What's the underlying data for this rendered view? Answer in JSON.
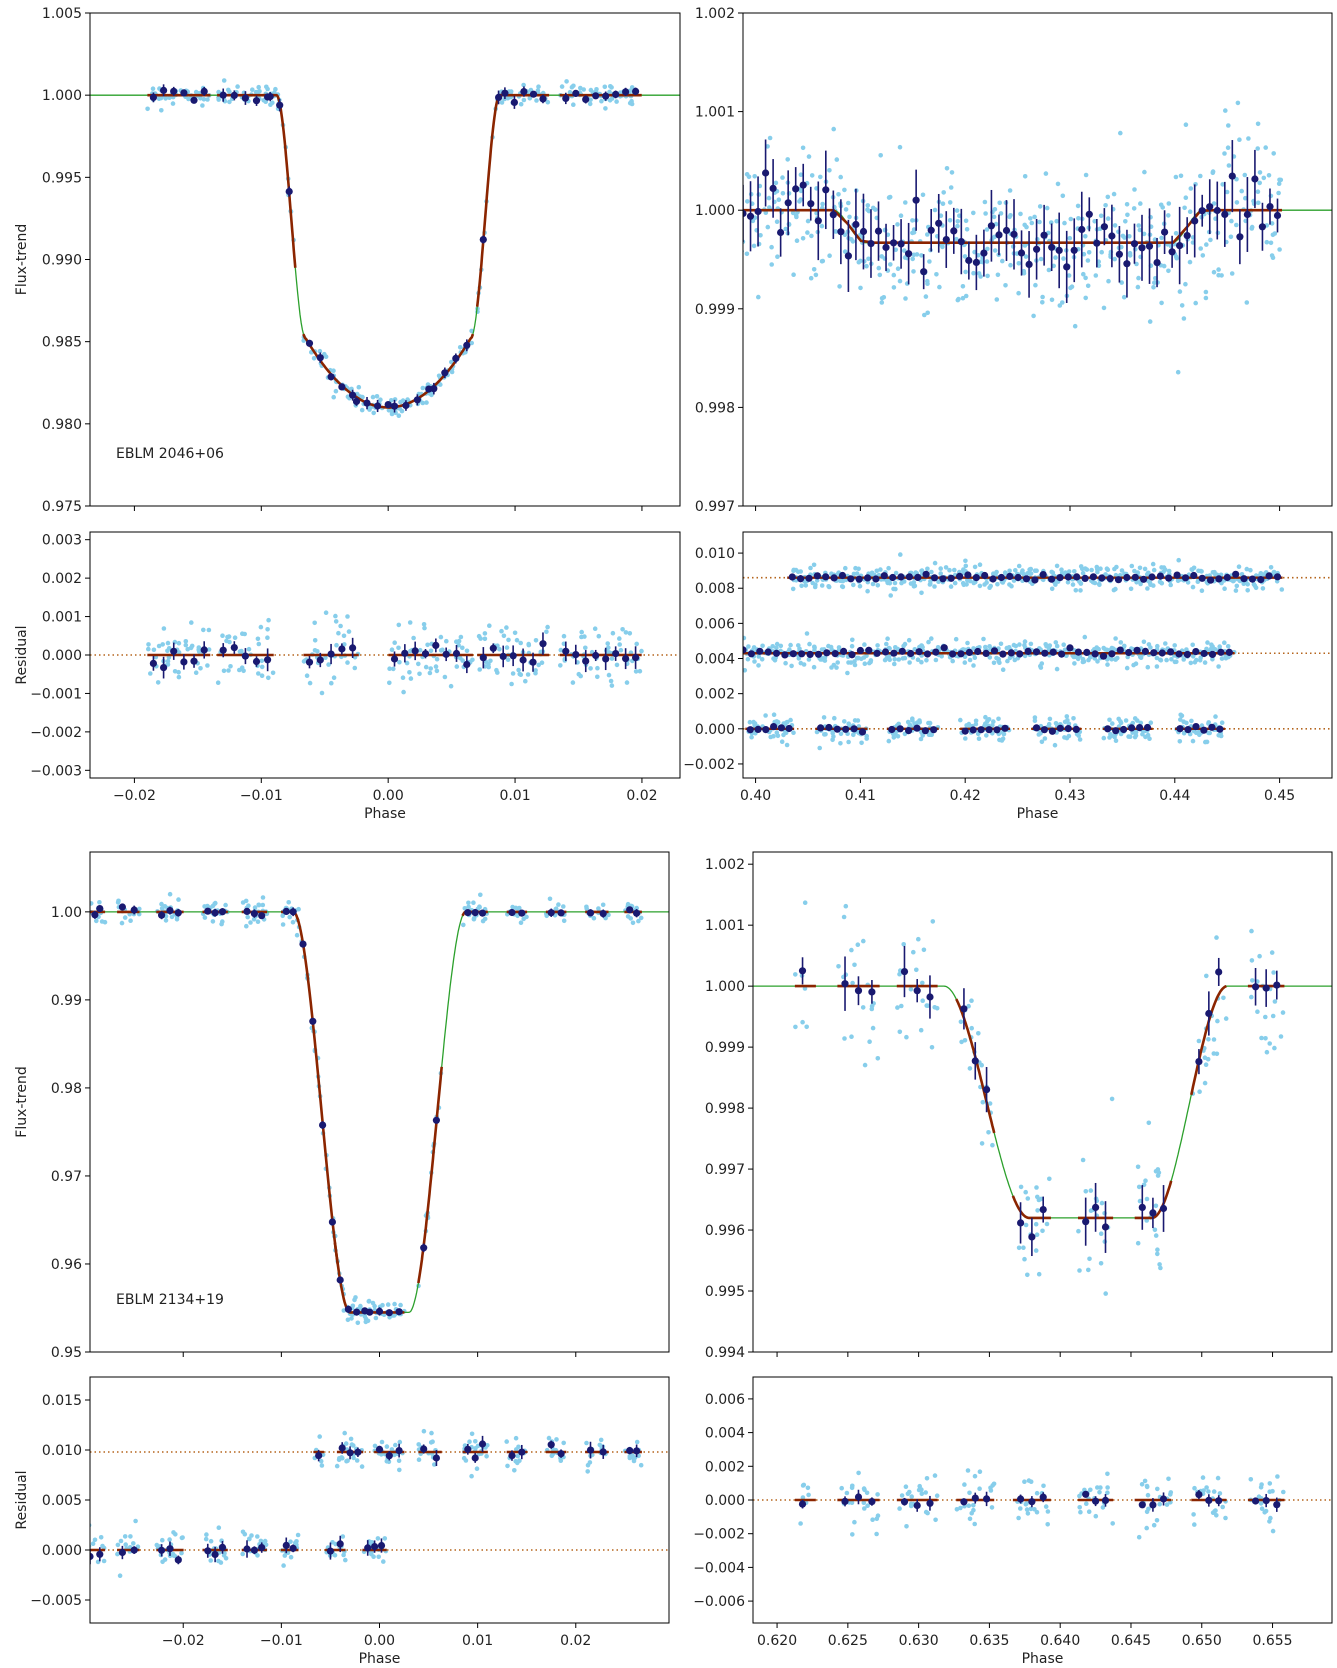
{
  "figure": {
    "phase_label": "Phase",
    "flux_label": "Flux-trend",
    "residual_label": "Residual"
  },
  "colors": {
    "raw_points": "#87ceeb",
    "binned_points": "#191970",
    "model_line": "#2ca02c",
    "binned_model": "#8b2500",
    "zero_line": "#b5651d"
  },
  "chart_data": [
    {
      "type": "scatter",
      "panel": "top-left-flux",
      "annotation": "EBLM 2046+06",
      "xlabel": "",
      "ylabel": "Flux-trend",
      "xlim": [
        -0.0235,
        0.023
      ],
      "ylim": [
        0.975,
        1.005
      ],
      "yticks": [
        "0.975",
        "0.980",
        "0.985",
        "0.990",
        "0.995",
        "1.000",
        "1.005"
      ],
      "model": {
        "kind": "primary",
        "center": 0.0,
        "t1": 0.0088,
        "t2": 0.0065,
        "depth": 0.0148,
        "curv": 0.0042
      },
      "binned": {
        "segments": [
          [
            -0.0185,
            -0.0145
          ],
          [
            -0.013,
            -0.0095
          ],
          [
            -0.0093,
            -0.0078
          ],
          [
            -0.0062,
            -0.0028
          ],
          [
            -0.0025,
            0.0
          ],
          [
            0.0005,
            0.0032
          ],
          [
            0.0036,
            0.0062
          ],
          [
            0.0075,
            0.0087
          ],
          [
            0.0092,
            0.0122
          ],
          [
            0.014,
            0.0195
          ]
        ],
        "spacing": 0.0008,
        "noise": 0.00017
      },
      "raw_noise": 0.0003
    },
    {
      "type": "scatter",
      "panel": "top-right-flux",
      "xlabel": "",
      "ylabel": "",
      "xlim": [
        0.3988,
        0.455
      ],
      "ylim": [
        0.997,
        1.002
      ],
      "yticks": [
        "0.997",
        "0.998",
        "0.999",
        "1.000",
        "1.001",
        "1.002"
      ],
      "model": {
        "kind": "secondary",
        "a": 0.4074,
        "b": 0.4105,
        "c": 0.4397,
        "d": 0.4427,
        "depth": 0.00033
      },
      "binned": {
        "segments": [
          [
            0.3988,
            0.4498
          ]
        ],
        "spacing": 0.00072,
        "noise": 0.00016
      },
      "raw_noise": 0.00035
    },
    {
      "type": "scatter",
      "panel": "top-left-residual",
      "xlabel": "Phase",
      "ylabel": "Residual",
      "xlim": [
        -0.0235,
        0.023
      ],
      "ylim": [
        -0.0032,
        0.0032
      ],
      "yticks": [
        "−0.003",
        "−0.002",
        "−0.001",
        "0.000",
        "0.001",
        "0.002",
        "0.003"
      ],
      "xticks": [
        "−0.02",
        "−0.01",
        "0.00",
        "0.01",
        "0.02"
      ],
      "offsets": [
        0
      ],
      "binned": {
        "segments": [
          [
            -0.0185,
            -0.0145
          ],
          [
            -0.013,
            -0.0095
          ],
          [
            -0.0062,
            -0.0028
          ],
          [
            0.0005,
            0.0062
          ],
          [
            0.0075,
            0.0122
          ],
          [
            0.014,
            0.0195
          ]
        ],
        "spacing": 0.0008,
        "noise": 0.00012
      },
      "raw_noise": 0.00045
    },
    {
      "type": "scatter",
      "panel": "top-right-residual",
      "xlabel": "Phase",
      "ylabel": "",
      "xlim": [
        0.3988,
        0.455
      ],
      "ylim": [
        -0.0028,
        0.0112
      ],
      "yticks": [
        "−0.002",
        "0.000",
        "0.002",
        "0.004",
        "0.006",
        "0.008",
        "0.010"
      ],
      "xticks": [
        "0.40",
        "0.41",
        "0.42",
        "0.43",
        "0.44",
        "0.45"
      ],
      "offsets": [
        0,
        0.0043,
        0.0086
      ],
      "binned": {
        "segments_by_offset": [
          [
            [
              0.3995,
              0.4032
            ],
            [
              0.4062,
              0.4102
            ],
            [
              0.413,
              0.417
            ],
            [
              0.42,
              0.4238
            ],
            [
              0.4268,
              0.4306
            ],
            [
              0.4336,
              0.4374
            ],
            [
              0.4405,
              0.4443
            ]
          ],
          [
            [
              0.3988,
              0.4452
            ]
          ],
          [
            [
              0.4035,
              0.4498
            ]
          ]
        ],
        "spacing": 0.0008,
        "noise": 8e-05
      },
      "raw_noise": 0.00035
    },
    {
      "type": "scatter",
      "panel": "bottom-left-flux",
      "annotation": "EBLM 2134+19",
      "xlabel": "",
      "ylabel": "Flux-trend",
      "xlim": [
        -0.0295,
        0.0295
      ],
      "ylim": [
        0.95,
        1.0068
      ],
      "yticks": [
        "0.95",
        "0.96",
        "0.97",
        "0.98",
        "0.99",
        "1.00"
      ],
      "model": {
        "kind": "primary",
        "center": 0.0,
        "t1": 0.0088,
        "t2": 0.003,
        "depth": 0.0455,
        "curv": 0.0
      },
      "binned": {
        "segments": [
          [
            -0.029,
            -0.0285
          ],
          [
            -0.0262,
            -0.025
          ],
          [
            -0.0222,
            -0.0205
          ],
          [
            -0.0175,
            -0.016
          ],
          [
            -0.0135,
            -0.012
          ],
          [
            -0.0095,
            -0.0088
          ],
          [
            -0.0078,
            -0.0048
          ],
          [
            -0.004,
            -0.0015
          ],
          [
            -0.001,
            0.002
          ],
          [
            0.0045,
            0.0058
          ],
          [
            0.009,
            0.0105
          ],
          [
            0.0135,
            0.0145
          ],
          [
            0.0175,
            0.0185
          ],
          [
            0.0215,
            0.0228
          ],
          [
            0.0255,
            0.0262
          ]
        ],
        "spacing": 0.0009,
        "noise": 0.0002
      },
      "raw_noise": 0.0007
    },
    {
      "type": "scatter",
      "panel": "bottom-right-flux",
      "xlabel": "",
      "ylabel": "",
      "xlim": [
        0.6183,
        0.6592
      ],
      "ylim": [
        0.994,
        1.0022
      ],
      "yticks": [
        "0.994",
        "0.995",
        "0.996",
        "0.997",
        "0.998",
        "0.999",
        "1.000",
        "1.001",
        "1.002"
      ],
      "model": {
        "kind": "secondary",
        "a": 0.6318,
        "b": 0.6378,
        "c": 0.6465,
        "d": 0.6518,
        "depth": 0.0038
      },
      "binned": {
        "segments": [
          [
            0.6218,
            0.6222
          ],
          [
            0.6248,
            0.6267
          ],
          [
            0.629,
            0.6308
          ],
          [
            0.6332,
            0.6348
          ],
          [
            0.6372,
            0.6388
          ],
          [
            0.6418,
            0.6432
          ],
          [
            0.6458,
            0.6473
          ],
          [
            0.6498,
            0.6512
          ],
          [
            0.6538,
            0.6553
          ]
        ],
        "spacing": 0.0009,
        "noise": 0.00018
      },
      "raw_noise": 0.0006
    },
    {
      "type": "scatter",
      "panel": "bottom-left-residual",
      "xlabel": "Phase",
      "ylabel": "Residual",
      "xlim": [
        -0.0295,
        0.0295
      ],
      "ylim": [
        -0.0073,
        0.0173
      ],
      "yticks": [
        "−0.005",
        "0.000",
        "0.005",
        "0.010",
        "0.015"
      ],
      "xticks": [
        "−0.02",
        "−0.01",
        "0.00",
        "0.01",
        "0.02"
      ],
      "offsets": [
        0,
        0.0098
      ],
      "binned": {
        "segments_by_offset": [
          [
            [
              -0.0295,
              -0.0285
            ],
            [
              -0.0262,
              -0.025
            ],
            [
              -0.0222,
              -0.0205
            ],
            [
              -0.0175,
              -0.016
            ],
            [
              -0.0135,
              -0.012
            ],
            [
              -0.0095,
              -0.0088
            ],
            [
              -0.005,
              -0.004
            ],
            [
              -0.0012,
              0.0002
            ]
          ],
          [
            [
              -0.0062,
              -0.0062
            ],
            [
              -0.0038,
              -0.0022
            ],
            [
              0.0,
              0.002
            ],
            [
              0.0045,
              0.0058
            ],
            [
              0.009,
              0.0105
            ],
            [
              0.0135,
              0.0145
            ],
            [
              0.0175,
              0.0185
            ],
            [
              0.0215,
              0.0228
            ],
            [
              0.0255,
              0.0262
            ]
          ]
        ],
        "spacing": 0.0009,
        "noise": 0.00035
      },
      "raw_noise": 0.0008
    },
    {
      "type": "scatter",
      "panel": "bottom-right-residual",
      "xlabel": "Phase",
      "ylabel": "",
      "xlim": [
        0.6183,
        0.6592
      ],
      "ylim": [
        -0.0073,
        0.0073
      ],
      "yticks": [
        "−0.006",
        "−0.004",
        "−0.002",
        "0.000",
        "0.002",
        "0.004",
        "0.006"
      ],
      "xticks": [
        "0.620",
        "0.625",
        "0.630",
        "0.635",
        "0.640",
        "0.645",
        "0.650",
        "0.655"
      ],
      "offsets": [
        0
      ],
      "binned": {
        "segments": [
          [
            0.6218,
            0.6222
          ],
          [
            0.6248,
            0.6267
          ],
          [
            0.629,
            0.6308
          ],
          [
            0.6332,
            0.6348
          ],
          [
            0.6372,
            0.6388
          ],
          [
            0.6418,
            0.6432
          ],
          [
            0.6458,
            0.6473
          ],
          [
            0.6498,
            0.6512
          ],
          [
            0.6538,
            0.6553
          ]
        ],
        "spacing": 0.0009,
        "noise": 0.00018
      },
      "raw_noise": 0.0008
    }
  ]
}
